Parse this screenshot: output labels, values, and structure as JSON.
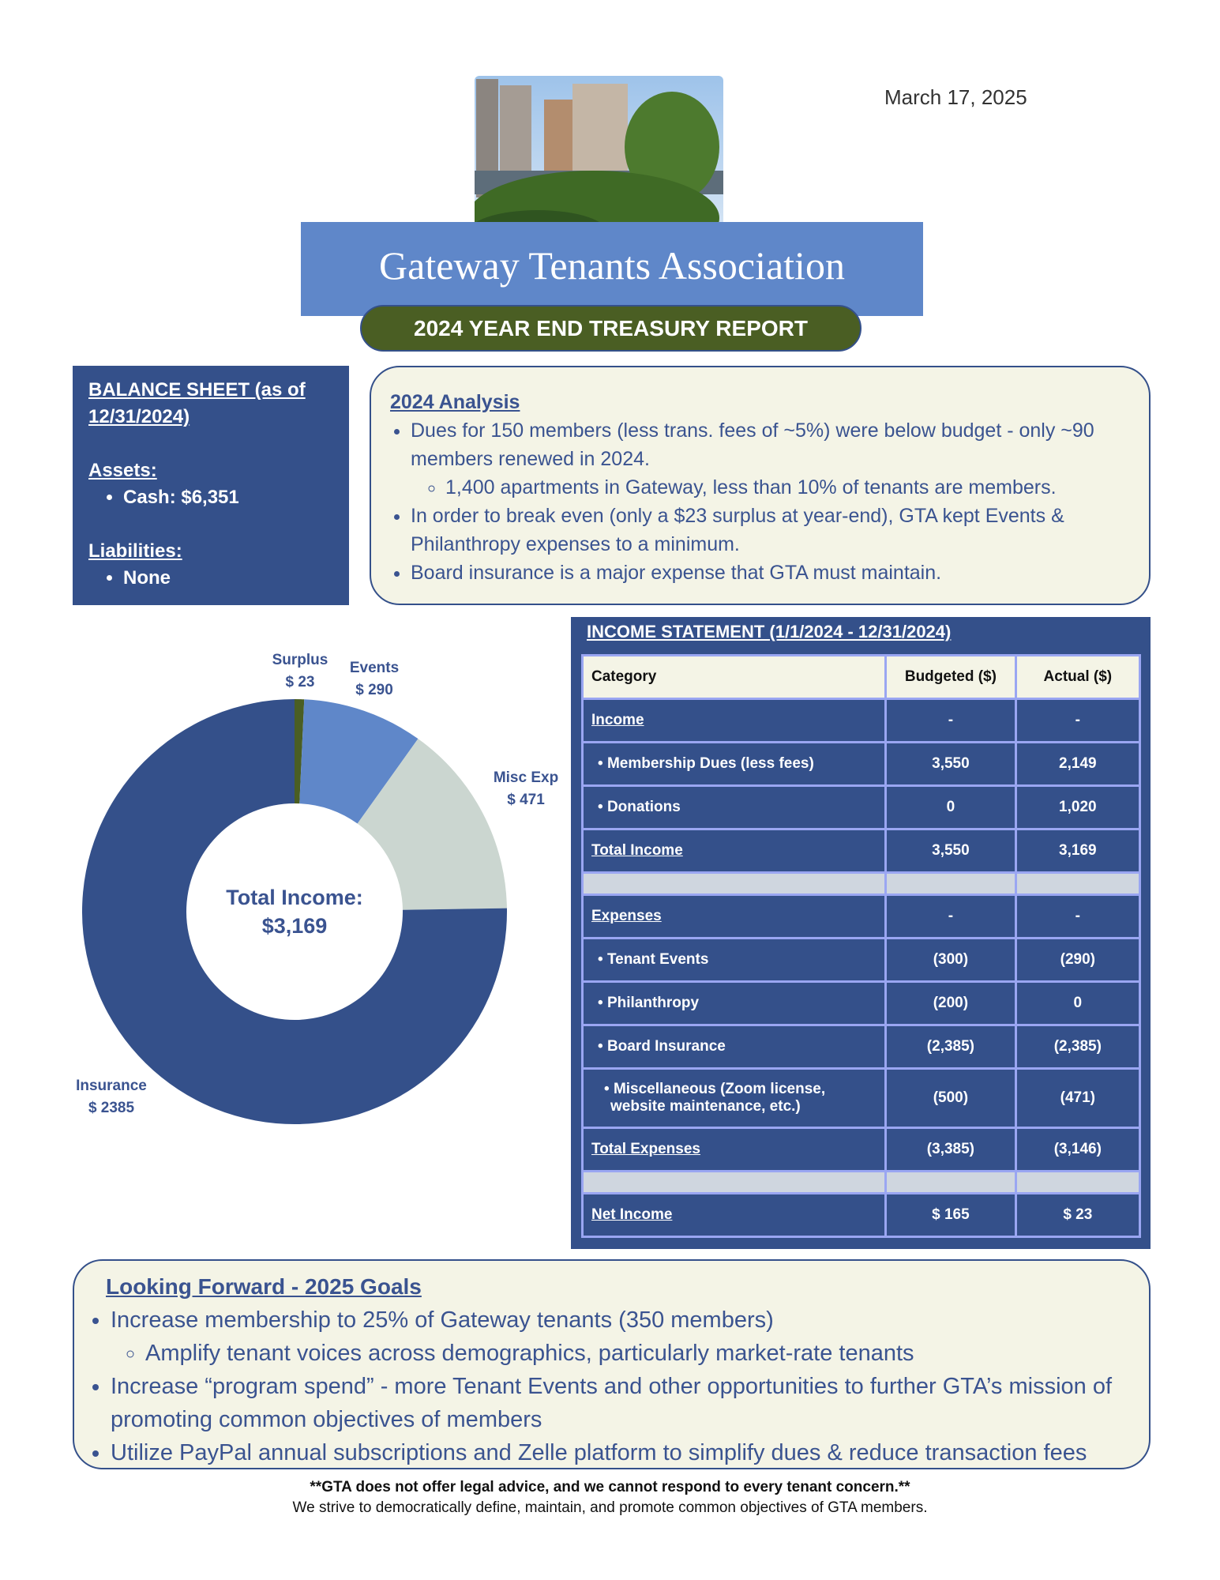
{
  "header": {
    "date": "March 17, 2025",
    "title": "Gateway Tenants Association",
    "subtitle": "2024 YEAR END TREASURY REPORT"
  },
  "balance_sheet": {
    "title": "BALANCE SHEET (as of 12/31/2024)",
    "assets_label": "Assets:",
    "assets": [
      "Cash: $6,351"
    ],
    "liabilities_label": "Liabilities:",
    "liabilities": [
      "None"
    ]
  },
  "analysis": {
    "title": "2024 Analysis",
    "items": [
      {
        "text": "Dues for 150 members (less trans. fees of ~5%) were below budget - only ~90 members renewed in 2024.",
        "subitems": [
          "1,400 apartments in Gateway, less than 10% of tenants are members."
        ]
      },
      {
        "text": "In order to break even (only a $23 surplus at year-end), GTA kept Events & Philanthropy expenses to a minimum."
      },
      {
        "text": "Board insurance is a major expense that GTA must maintain."
      }
    ]
  },
  "chart_data": {
    "type": "donut",
    "categories": [
      "Surplus",
      "Events",
      "Misc Exp",
      "Insurance"
    ],
    "values": [
      23,
      290,
      471,
      2385
    ],
    "value_labels": [
      "$ 23",
      "$ 290",
      "$ 471",
      "$ 2385"
    ],
    "colors": [
      "#4a5e23",
      "#5f87c9",
      "#cbd6d0",
      "#34508a"
    ],
    "annotations": [
      "Total Income:",
      "$3,169"
    ]
  },
  "income_statement": {
    "title": "INCOME STATEMENT (1/1/2024 - 12/31/2024)",
    "header": [
      "Category",
      "Budgeted ($)",
      "Actual ($)"
    ],
    "rows": [
      [
        "Income",
        "-",
        "-"
      ],
      [
        "Membership Dues (less fees)",
        "3,550",
        "2,149"
      ],
      [
        "Donations",
        "0",
        "1,020"
      ],
      [
        "Total Income",
        "3,550",
        "3,169"
      ],
      [
        "Expenses",
        "-",
        "-"
      ],
      [
        "Tenant Events",
        "(300)",
        "(290)"
      ],
      [
        "Philanthropy",
        "(200)",
        "0"
      ],
      [
        "Board Insurance",
        "(2,385)",
        "(2,385)"
      ],
      [
        "Miscellaneous (Zoom license, website maintenance, etc.)",
        "(500)",
        "(471)"
      ],
      [
        "Total Expenses",
        "(3,385)",
        "(3,146)"
      ],
      [
        "Net Income",
        "$  165",
        "$  23"
      ]
    ]
  },
  "goals": {
    "title": "Looking Forward - 2025 Goals",
    "items": [
      {
        "text": "Increase membership to 25% of Gateway tenants (350 members)",
        "subitems": [
          "Amplify tenant voices across demographics, particularly market-rate tenants"
        ]
      },
      {
        "text": "Increase “program spend” - more Tenant Events and other opportunities to further GTA’s mission of promoting common objectives of members"
      },
      {
        "text": "Utilize PayPal annual subscriptions and Zelle platform to simplify dues & reduce transaction fees"
      }
    ]
  },
  "footer": {
    "disclaimer": "**GTA does not offer legal advice, and we cannot respond to every tenant concern.**",
    "mission": "We strive to democratically define, maintain, and promote common objectives of GTA members."
  }
}
